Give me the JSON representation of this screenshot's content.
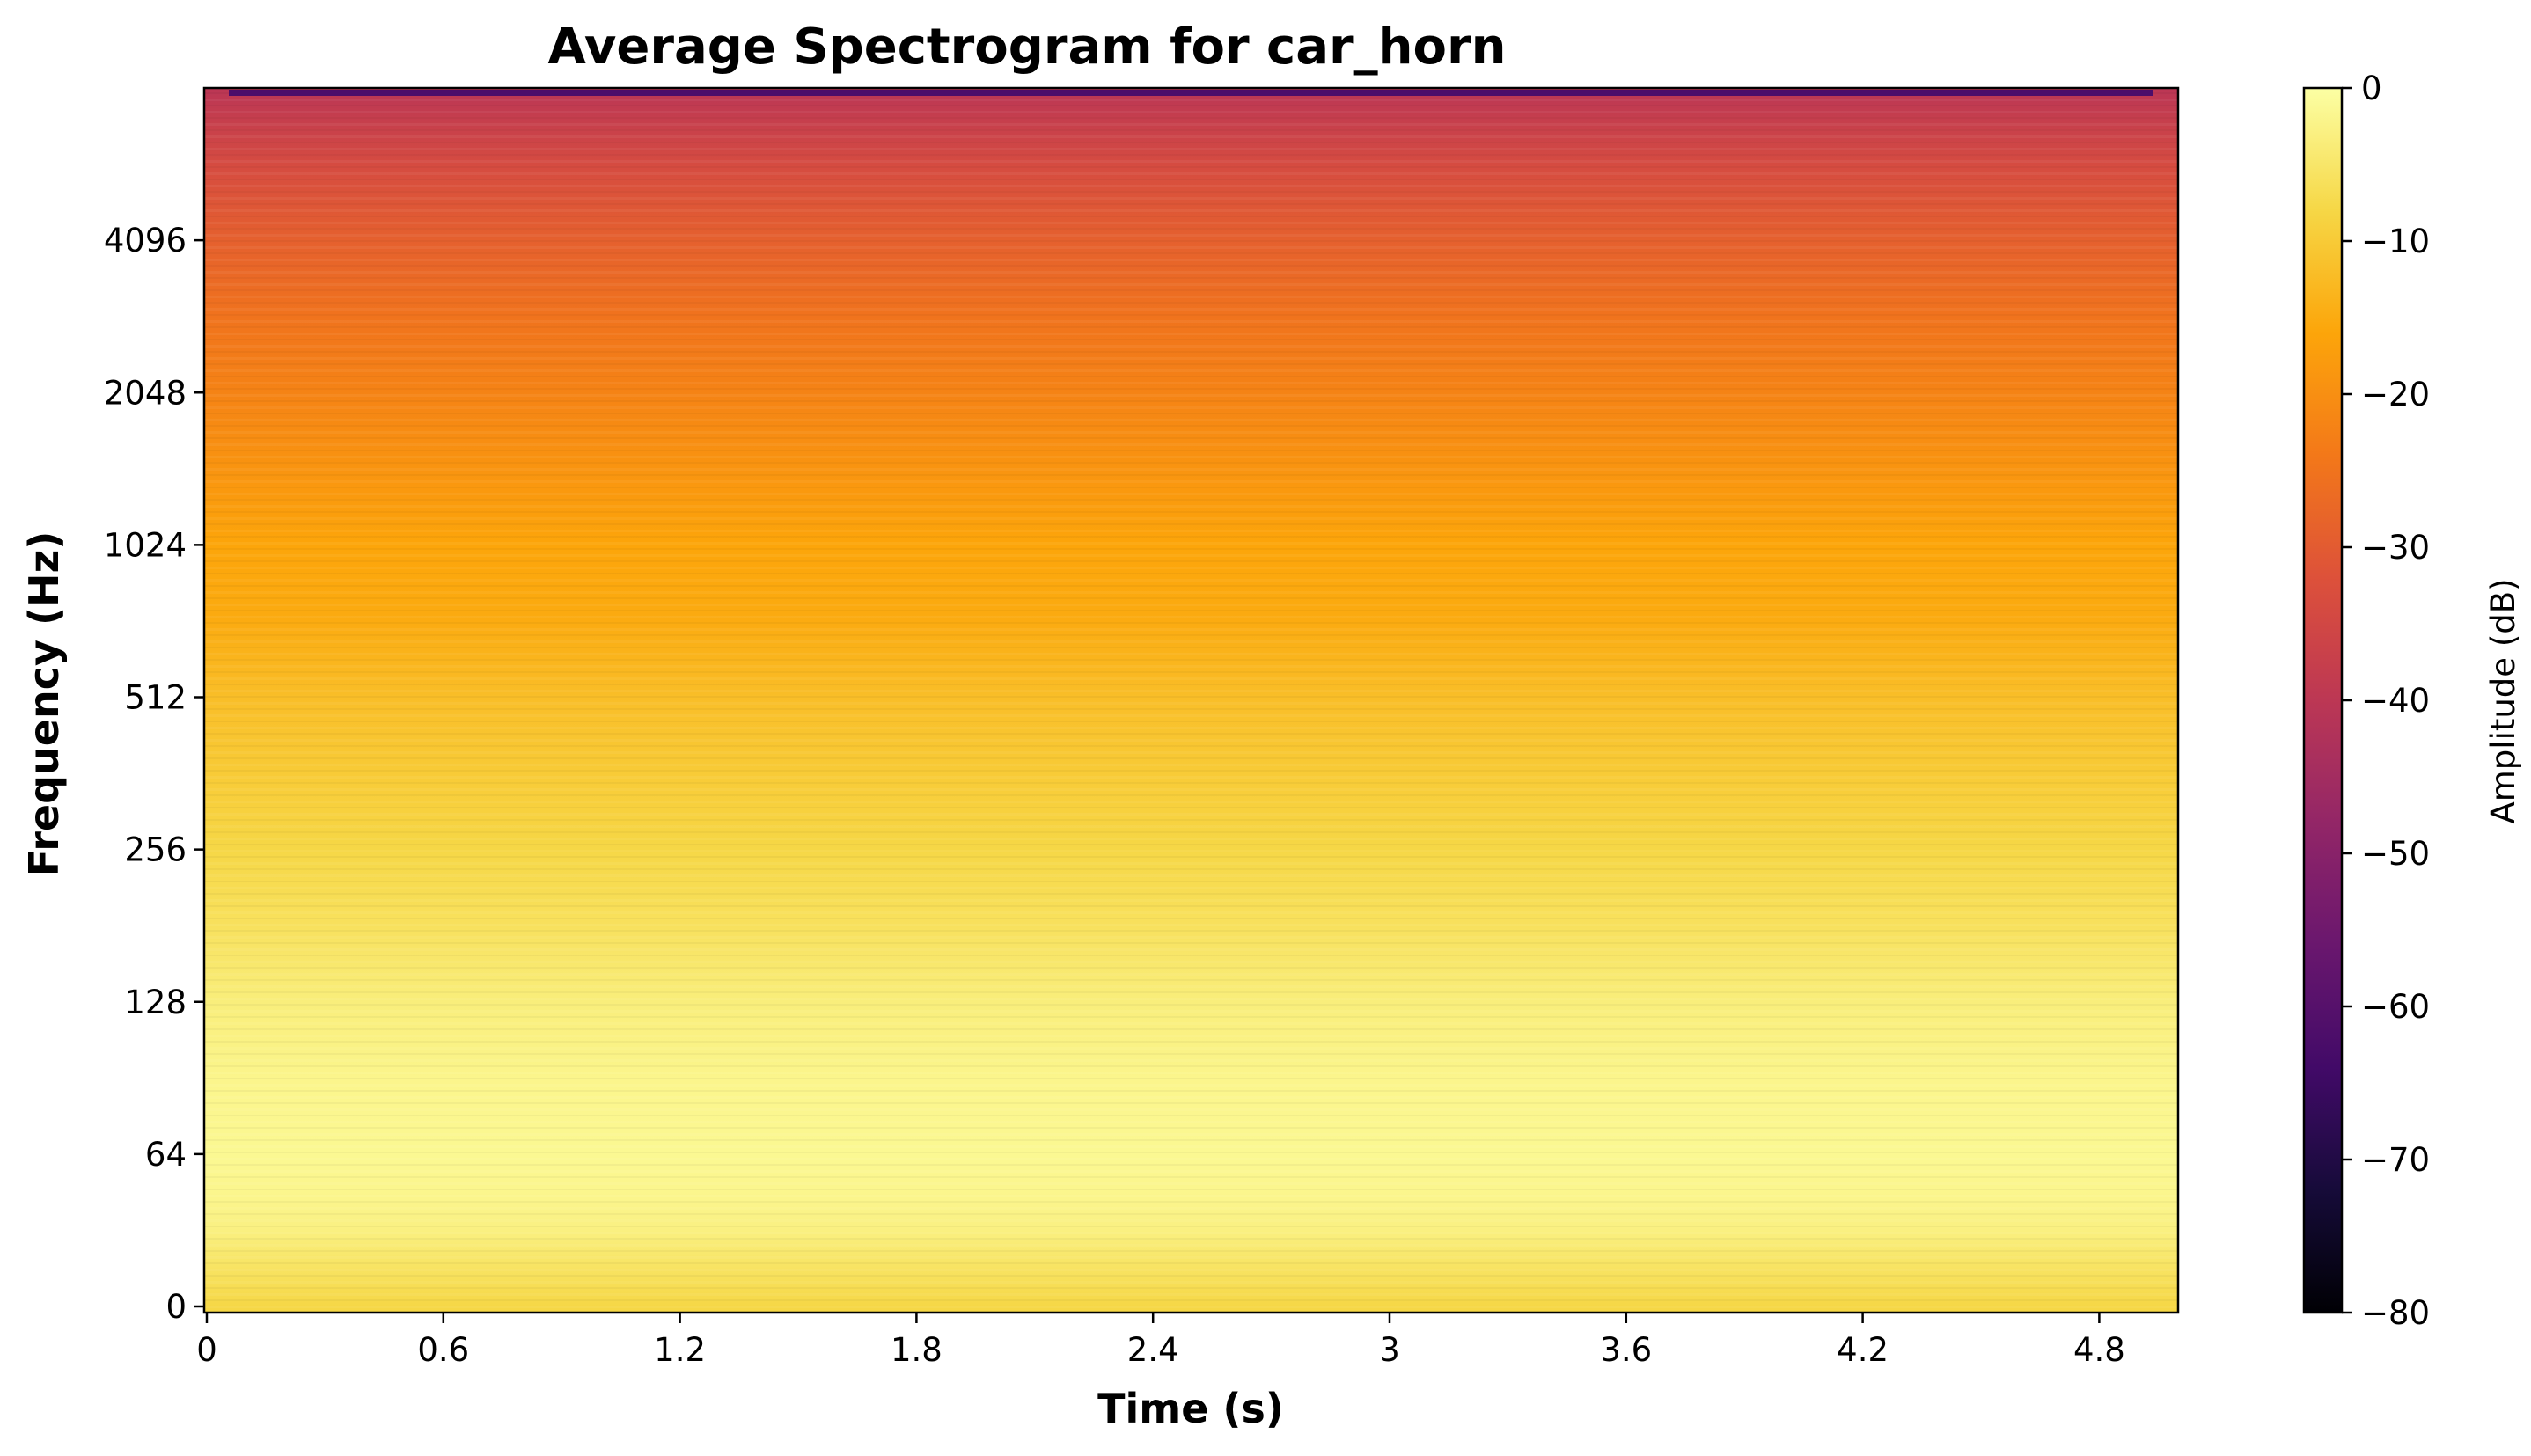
{
  "chart_data": {
    "type": "heatmap",
    "title": "Average Spectrogram for car_horn",
    "xlabel": "Time (s)",
    "ylabel": "Frequency (Hz)",
    "xlim": [
      0,
      5.0
    ],
    "x_ticks": [
      "0",
      "0.6",
      "1.2",
      "1.8",
      "2.4",
      "3",
      "3.6",
      "4.2",
      "4.8"
    ],
    "x_tick_values": [
      0,
      0.6,
      1.2,
      1.8,
      2.4,
      3.0,
      3.6,
      4.2,
      4.8
    ],
    "y_scale": "symlog",
    "y_ticks": [
      "0",
      "64",
      "128",
      "256",
      "512",
      "1024",
      "2048",
      "4096"
    ],
    "y_tick_values": [
      0,
      64,
      128,
      256,
      512,
      1024,
      2048,
      4096
    ],
    "ylim": [
      0,
      8192
    ],
    "colormap": "inferno",
    "colorbar": {
      "label": "Amplitude (dB)",
      "range": [
        -80,
        0
      ],
      "ticks": [
        "0",
        "−10",
        "−20",
        "−30",
        "−40",
        "−50",
        "−60",
        "−70",
        "−80"
      ],
      "tick_values": [
        0,
        -10,
        -20,
        -30,
        -40,
        -50,
        -60,
        -70,
        -80
      ]
    },
    "amplitude_profile": {
      "frequency_hz": [
        0,
        20,
        32,
        45,
        64,
        90,
        128,
        180,
        256,
        360,
        512,
        724,
        1024,
        1448,
        2048,
        2896,
        4096,
        5792,
        8000
      ],
      "amplitude_db": [
        -8,
        -5,
        -3,
        -2,
        -1.5,
        -2,
        -3.5,
        -6,
        -8,
        -10,
        -12,
        -15,
        -16,
        -19,
        -22,
        -25,
        -29,
        -34,
        -40
      ]
    }
  }
}
